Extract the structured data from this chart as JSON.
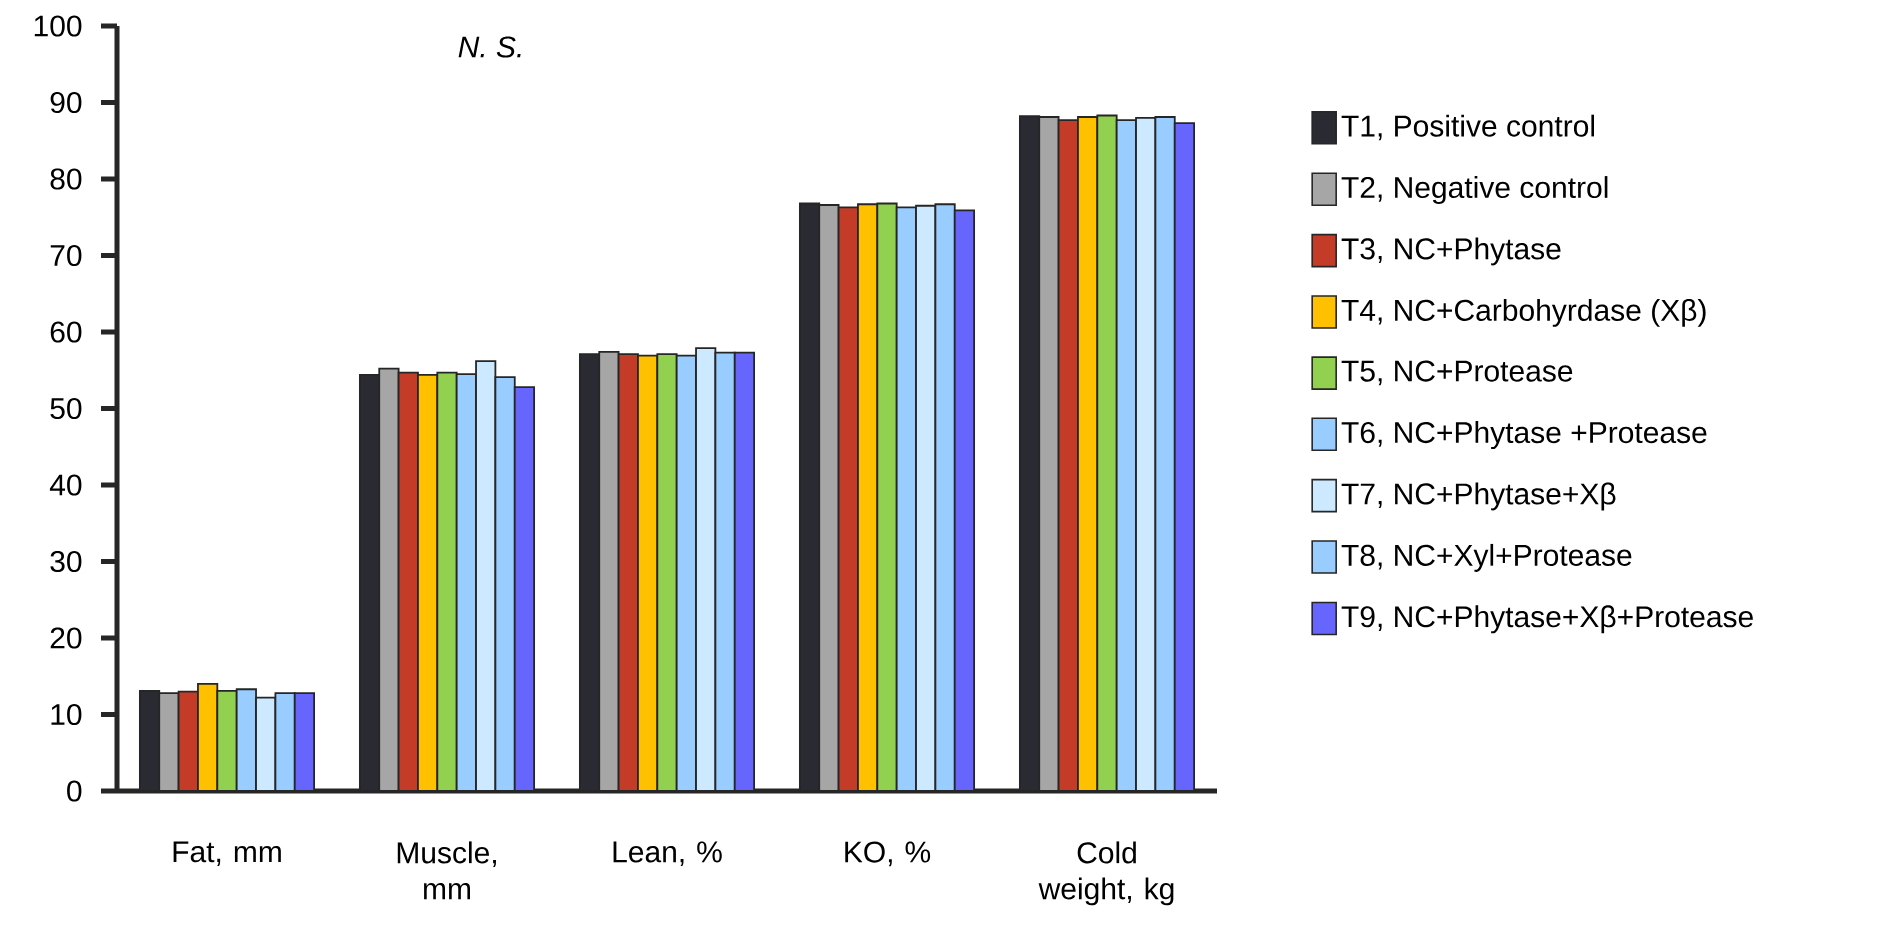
{
  "chart_data": {
    "type": "bar",
    "annotations": [
      "N. S."
    ],
    "categories": [
      "Fat, mm",
      "Muscle, mm",
      "Lean, %",
      "KO, %",
      "Cold weight, kg"
    ],
    "ylim": [
      0,
      100
    ],
    "yticks": [
      0,
      10,
      20,
      30,
      40,
      50,
      60,
      70,
      80,
      90,
      100
    ],
    "legend": "right",
    "series": [
      {
        "name": "T1, Positive control",
        "color": "#2a2a33",
        "values": [
          13.1,
          54.4,
          57.1,
          76.8,
          88.2
        ]
      },
      {
        "name": "T2, Negative control",
        "color": "#a6a6a6",
        "values": [
          12.8,
          55.2,
          57.4,
          76.6,
          88.1
        ]
      },
      {
        "name": "T3, NC+Phytase",
        "color": "#c43c28",
        "values": [
          13.0,
          54.7,
          57.1,
          76.3,
          87.7
        ]
      },
      {
        "name": "T4, NC+Carbohyrdase (Xβ)",
        "color": "#ffc000",
        "values": [
          14.0,
          54.4,
          56.9,
          76.7,
          88.1
        ]
      },
      {
        "name": "T5, NC+Protease",
        "color": "#92d050",
        "values": [
          13.1,
          54.7,
          57.1,
          76.8,
          88.3
        ]
      },
      {
        "name": "T6, NC+Phytase +Protease",
        "color": "#99ccff",
        "values": [
          13.3,
          54.5,
          56.9,
          76.3,
          87.7
        ]
      },
      {
        "name": "T7, NC+Phytase+Xβ",
        "color": "#cce9ff",
        "values": [
          12.2,
          56.2,
          57.9,
          76.5,
          88.0
        ]
      },
      {
        "name": "T8, NC+Xyl+Protease",
        "color": "#99ccff",
        "values": [
          12.8,
          54.1,
          57.3,
          76.7,
          88.1
        ]
      },
      {
        "name": "T9, NC+Phytase+Xβ+Protease",
        "color": "#6666ff",
        "values": [
          12.8,
          52.8,
          57.3,
          75.9,
          87.3
        ]
      }
    ]
  }
}
